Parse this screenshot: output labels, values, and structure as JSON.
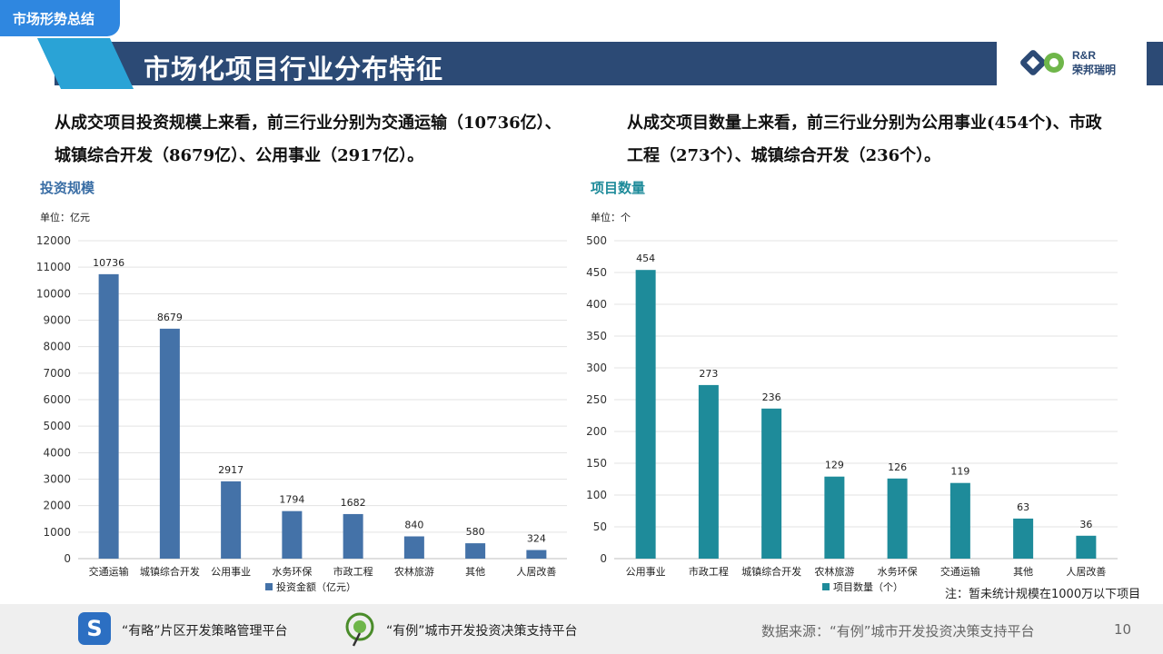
{
  "header": {
    "section_tag": "市场形势总结",
    "title": "市场化项目行业分布特征",
    "logo_rr": "R&R",
    "logo_cn": "荣邦瑞明"
  },
  "summary": {
    "left_line1": "从成交项目投资规模上来看，前三行业分别为交通运输（10736亿）、",
    "left_line2": "城镇综合开发（8679亿）、公用事业（2917亿）。",
    "right_line1": "从成交项目数量上来看，前三行业分别为公用事业(454个)、市政",
    "right_line2": "工程（273个）、城镇综合开发（236个）。"
  },
  "chart_data": [
    {
      "type": "bar",
      "title": "投资规模",
      "unit": "单位：亿元",
      "categories": [
        "交通运输",
        "城镇综合开发",
        "公用事业",
        "水务环保",
        "市政工程",
        "农林旅游",
        "其他",
        "人居改善"
      ],
      "series": [
        {
          "name": "投资金额（亿元）",
          "values": [
            10736,
            8679,
            2917,
            1794,
            1682,
            840,
            580,
            324
          ]
        }
      ],
      "ylim": [
        0,
        12000
      ],
      "yticks": [
        0,
        1000,
        2000,
        3000,
        4000,
        5000,
        6000,
        7000,
        8000,
        9000,
        10000,
        11000,
        12000
      ],
      "color": "#4472a8",
      "title_color": "#3a6ea5",
      "legend": "bottom",
      "grid": true
    },
    {
      "type": "bar",
      "title": "项目数量",
      "unit": "单位：个",
      "categories": [
        "公用事业",
        "市政工程",
        "城镇综合开发",
        "农林旅游",
        "水务环保",
        "交通运输",
        "其他",
        "人居改善"
      ],
      "series": [
        {
          "name": "项目数量（个）",
          "values": [
            454,
            273,
            236,
            129,
            126,
            119,
            63,
            36
          ]
        }
      ],
      "ylim": [
        0,
        500
      ],
      "yticks": [
        0,
        50,
        100,
        150,
        200,
        250,
        300,
        350,
        400,
        450,
        500
      ],
      "color": "#1e8b9a",
      "title_color": "#1e8b9a",
      "legend": "bottom",
      "grid": true
    }
  ],
  "note": "注：暂未统计规模在1000万以下项目",
  "footer": {
    "platform1": "“有略”片区开发策略管理平台",
    "platform2": "“有例”城市开发投资决策支持平台",
    "source": "数据来源：“有例”城市开发投资决策支持平台",
    "page_number": "10",
    "icon1": "s-logo-icon",
    "icon2": "map-pin-icon"
  }
}
